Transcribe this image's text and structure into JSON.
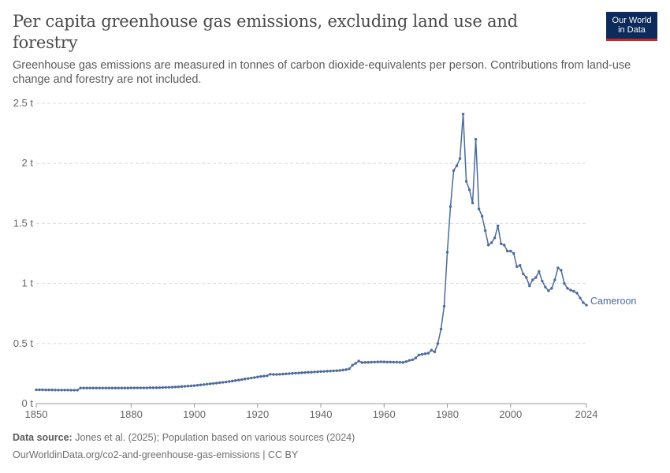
{
  "header": {
    "title": "Per capita greenhouse gas emissions, excluding land use and forestry",
    "subtitle": "Greenhouse gas emissions are measured in tonnes of carbon dioxide-equivalents per person. Contributions from land-use change and forestry are not included."
  },
  "logo": {
    "line1": "Our World",
    "line2": "in Data",
    "bg_color": "#0c2b5a",
    "accent_color": "#ce261e"
  },
  "footer": {
    "source_label": "Data source:",
    "source_text": "Jones et al. (2025); Population based on various sources (2024)",
    "url_line": "OurWorldinData.org/co2-and-greenhouse-gas-emissions | CC BY"
  },
  "chart_data": {
    "type": "line",
    "title": "Per capita greenhouse gas emissions, excluding land use and forestry",
    "xlabel": "",
    "ylabel": "",
    "xlim": [
      1850,
      2024
    ],
    "ylim": [
      0,
      2.5
    ],
    "grid": "horizontal dashed",
    "x_ticks": [
      1850,
      1880,
      1900,
      1920,
      1940,
      1960,
      1980,
      2000,
      2024
    ],
    "y_ticks": [
      {
        "value": 0,
        "label": "0 t"
      },
      {
        "value": 0.5,
        "label": "0.5 t"
      },
      {
        "value": 1,
        "label": "1 t"
      },
      {
        "value": 1.5,
        "label": "1.5 t"
      },
      {
        "value": 2,
        "label": "2 t"
      },
      {
        "value": 2.5,
        "label": "2.5 t"
      }
    ],
    "series": [
      {
        "name": "Cameroon",
        "color": "#4c6a9c",
        "points": [
          [
            1850,
            0.115
          ],
          [
            1851,
            0.115
          ],
          [
            1852,
            0.115
          ],
          [
            1853,
            0.114
          ],
          [
            1854,
            0.114
          ],
          [
            1855,
            0.114
          ],
          [
            1856,
            0.113
          ],
          [
            1857,
            0.113
          ],
          [
            1858,
            0.113
          ],
          [
            1859,
            0.113
          ],
          [
            1860,
            0.113
          ],
          [
            1861,
            0.112
          ],
          [
            1862,
            0.112
          ],
          [
            1863,
            0.112
          ],
          [
            1864,
            0.13
          ],
          [
            1865,
            0.13
          ],
          [
            1866,
            0.13
          ],
          [
            1867,
            0.13
          ],
          [
            1868,
            0.13
          ],
          [
            1869,
            0.13
          ],
          [
            1870,
            0.13
          ],
          [
            1871,
            0.13
          ],
          [
            1872,
            0.13
          ],
          [
            1873,
            0.13
          ],
          [
            1874,
            0.13
          ],
          [
            1875,
            0.13
          ],
          [
            1876,
            0.13
          ],
          [
            1877,
            0.13
          ],
          [
            1878,
            0.13
          ],
          [
            1879,
            0.13
          ],
          [
            1880,
            0.131
          ],
          [
            1881,
            0.131
          ],
          [
            1882,
            0.131
          ],
          [
            1883,
            0.131
          ],
          [
            1884,
            0.131
          ],
          [
            1885,
            0.131
          ],
          [
            1886,
            0.132
          ],
          [
            1887,
            0.132
          ],
          [
            1888,
            0.132
          ],
          [
            1889,
            0.133
          ],
          [
            1890,
            0.134
          ],
          [
            1891,
            0.135
          ],
          [
            1892,
            0.136
          ],
          [
            1893,
            0.137
          ],
          [
            1894,
            0.139
          ],
          [
            1895,
            0.14
          ],
          [
            1896,
            0.142
          ],
          [
            1897,
            0.144
          ],
          [
            1898,
            0.146
          ],
          [
            1899,
            0.148
          ],
          [
            1900,
            0.15
          ],
          [
            1901,
            0.153
          ],
          [
            1902,
            0.156
          ],
          [
            1903,
            0.159
          ],
          [
            1904,
            0.162
          ],
          [
            1905,
            0.165
          ],
          [
            1906,
            0.168
          ],
          [
            1907,
            0.171
          ],
          [
            1908,
            0.174
          ],
          [
            1909,
            0.177
          ],
          [
            1910,
            0.18
          ],
          [
            1911,
            0.184
          ],
          [
            1912,
            0.188
          ],
          [
            1913,
            0.192
          ],
          [
            1914,
            0.196
          ],
          [
            1915,
            0.2
          ],
          [
            1916,
            0.205
          ],
          [
            1917,
            0.209
          ],
          [
            1918,
            0.213
          ],
          [
            1919,
            0.217
          ],
          [
            1920,
            0.222
          ],
          [
            1921,
            0.226
          ],
          [
            1922,
            0.229
          ],
          [
            1923,
            0.232
          ],
          [
            1924,
            0.245
          ],
          [
            1925,
            0.243
          ],
          [
            1926,
            0.243
          ],
          [
            1927,
            0.244
          ],
          [
            1928,
            0.246
          ],
          [
            1929,
            0.248
          ],
          [
            1930,
            0.25
          ],
          [
            1931,
            0.252
          ],
          [
            1932,
            0.254
          ],
          [
            1933,
            0.255
          ],
          [
            1934,
            0.257
          ],
          [
            1935,
            0.259
          ],
          [
            1936,
            0.261
          ],
          [
            1937,
            0.262
          ],
          [
            1938,
            0.264
          ],
          [
            1939,
            0.265
          ],
          [
            1940,
            0.267
          ],
          [
            1941,
            0.268
          ],
          [
            1942,
            0.27
          ],
          [
            1943,
            0.271
          ],
          [
            1944,
            0.273
          ],
          [
            1945,
            0.274
          ],
          [
            1946,
            0.276
          ],
          [
            1947,
            0.28
          ],
          [
            1948,
            0.283
          ],
          [
            1949,
            0.29
          ],
          [
            1950,
            0.32
          ],
          [
            1951,
            0.335
          ],
          [
            1952,
            0.355
          ],
          [
            1953,
            0.342
          ],
          [
            1954,
            0.343
          ],
          [
            1955,
            0.344
          ],
          [
            1956,
            0.345
          ],
          [
            1957,
            0.346
          ],
          [
            1958,
            0.347
          ],
          [
            1959,
            0.348
          ],
          [
            1960,
            0.347
          ],
          [
            1961,
            0.346
          ],
          [
            1962,
            0.346
          ],
          [
            1963,
            0.345
          ],
          [
            1964,
            0.345
          ],
          [
            1965,
            0.344
          ],
          [
            1966,
            0.343
          ],
          [
            1967,
            0.35
          ],
          [
            1968,
            0.36
          ],
          [
            1969,
            0.365
          ],
          [
            1970,
            0.38
          ],
          [
            1971,
            0.405
          ],
          [
            1972,
            0.41
          ],
          [
            1973,
            0.415
          ],
          [
            1974,
            0.42
          ],
          [
            1975,
            0.445
          ],
          [
            1976,
            0.43
          ],
          [
            1977,
            0.5
          ],
          [
            1978,
            0.62
          ],
          [
            1979,
            0.81
          ],
          [
            1980,
            1.26
          ],
          [
            1981,
            1.64
          ],
          [
            1982,
            1.94
          ],
          [
            1983,
            1.98
          ],
          [
            1984,
            2.04
          ],
          [
            1985,
            2.41
          ],
          [
            1986,
            1.85
          ],
          [
            1987,
            1.78
          ],
          [
            1988,
            1.67
          ],
          [
            1989,
            2.2
          ],
          [
            1990,
            1.62
          ],
          [
            1991,
            1.56
          ],
          [
            1992,
            1.44
          ],
          [
            1993,
            1.32
          ],
          [
            1994,
            1.34
          ],
          [
            1995,
            1.38
          ],
          [
            1996,
            1.48
          ],
          [
            1997,
            1.33
          ],
          [
            1998,
            1.32
          ],
          [
            1999,
            1.27
          ],
          [
            2000,
            1.27
          ],
          [
            2001,
            1.25
          ],
          [
            2002,
            1.14
          ],
          [
            2003,
            1.15
          ],
          [
            2004,
            1.08
          ],
          [
            2005,
            1.05
          ],
          [
            2006,
            0.98
          ],
          [
            2007,
            1.03
          ],
          [
            2008,
            1.05
          ],
          [
            2009,
            1.1
          ],
          [
            2010,
            1.02
          ],
          [
            2011,
            0.97
          ],
          [
            2012,
            0.94
          ],
          [
            2013,
            0.96
          ],
          [
            2014,
            1.03
          ],
          [
            2015,
            1.13
          ],
          [
            2016,
            1.11
          ],
          [
            2017,
            1.0
          ],
          [
            2018,
            0.96
          ],
          [
            2019,
            0.945
          ],
          [
            2020,
            0.935
          ],
          [
            2021,
            0.92
          ],
          [
            2022,
            0.88
          ],
          [
            2023,
            0.84
          ],
          [
            2024,
            0.82
          ]
        ]
      }
    ]
  }
}
